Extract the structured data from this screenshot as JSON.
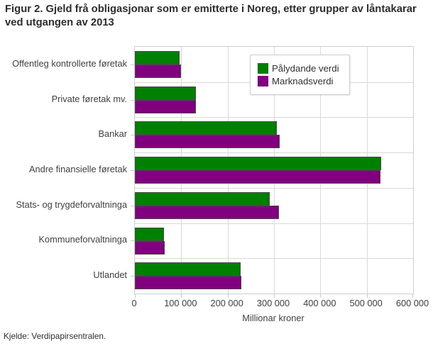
{
  "figure": {
    "title": "Figur 2. Gjeld frå obligasjonar som er emitterte i Noreg, etter grupper av låntakarar ved utgangen av 2013",
    "source": "Kjelde: Verdipapirsentralen."
  },
  "chart_data": {
    "type": "bar",
    "orientation": "horizontal",
    "title": "Figur 2. Gjeld frå obligasjonar som er emitterte i Noreg, etter grupper av låntakarar ved utgangen av 2013",
    "categories": [
      "Offentleg kontrollerte føretak",
      "Private føretak mv.",
      "Bankar",
      "Andre finansielle føretak",
      "Stats- og trygdeforvaltninga",
      "Kommuneforvaltninga",
      "Utlandet"
    ],
    "series": [
      {
        "name": "Pålydande verdi",
        "color": "#008000",
        "values": [
          97000,
          132000,
          306000,
          531000,
          291000,
          62000,
          228000
        ]
      },
      {
        "name": "Marknadsverdi",
        "color": "#800080",
        "values": [
          100000,
          132000,
          312000,
          529000,
          310000,
          65000,
          230000
        ]
      }
    ],
    "xlabel": "Millionar kroner",
    "ylabel": "",
    "xlim": [
      0,
      600000
    ],
    "xticks": [
      0,
      100000,
      200000,
      300000,
      400000,
      500000,
      600000
    ],
    "xtick_labels": [
      "0",
      "100 000",
      "200 000",
      "300 000",
      "400 000",
      "500 000",
      "600 000"
    ],
    "grid": true,
    "legend_position": "top-right-inside",
    "grid_color": "#d9d9d9",
    "bar_border_color": "#4a4a4a"
  }
}
